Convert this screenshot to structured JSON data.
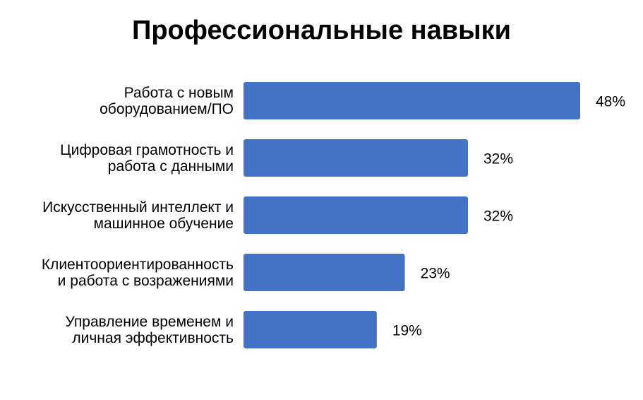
{
  "chart_data": {
    "type": "bar",
    "orientation": "horizontal",
    "title": "Профессиональные навыки",
    "categories": [
      [
        "Работа с новым",
        "оборудованием/ПО"
      ],
      [
        "Цифровая грамотность и",
        "работа с данными"
      ],
      [
        "Искусственный интеллект и",
        "машинное обучение"
      ],
      [
        "Клиентоориентированность",
        "и работа с возражениями"
      ],
      [
        "Управление временем и",
        "личная эффективность"
      ]
    ],
    "values": [
      48,
      32,
      32,
      23,
      19
    ],
    "value_labels": [
      "48%",
      "32%",
      "32%",
      "23%",
      "19%"
    ],
    "unit": "%",
    "xlim": [
      0,
      48
    ],
    "grid": false,
    "legend": "none",
    "colors": {
      "bar": "#4472C4",
      "text": "#000000",
      "background": "#FFFFFF"
    }
  }
}
